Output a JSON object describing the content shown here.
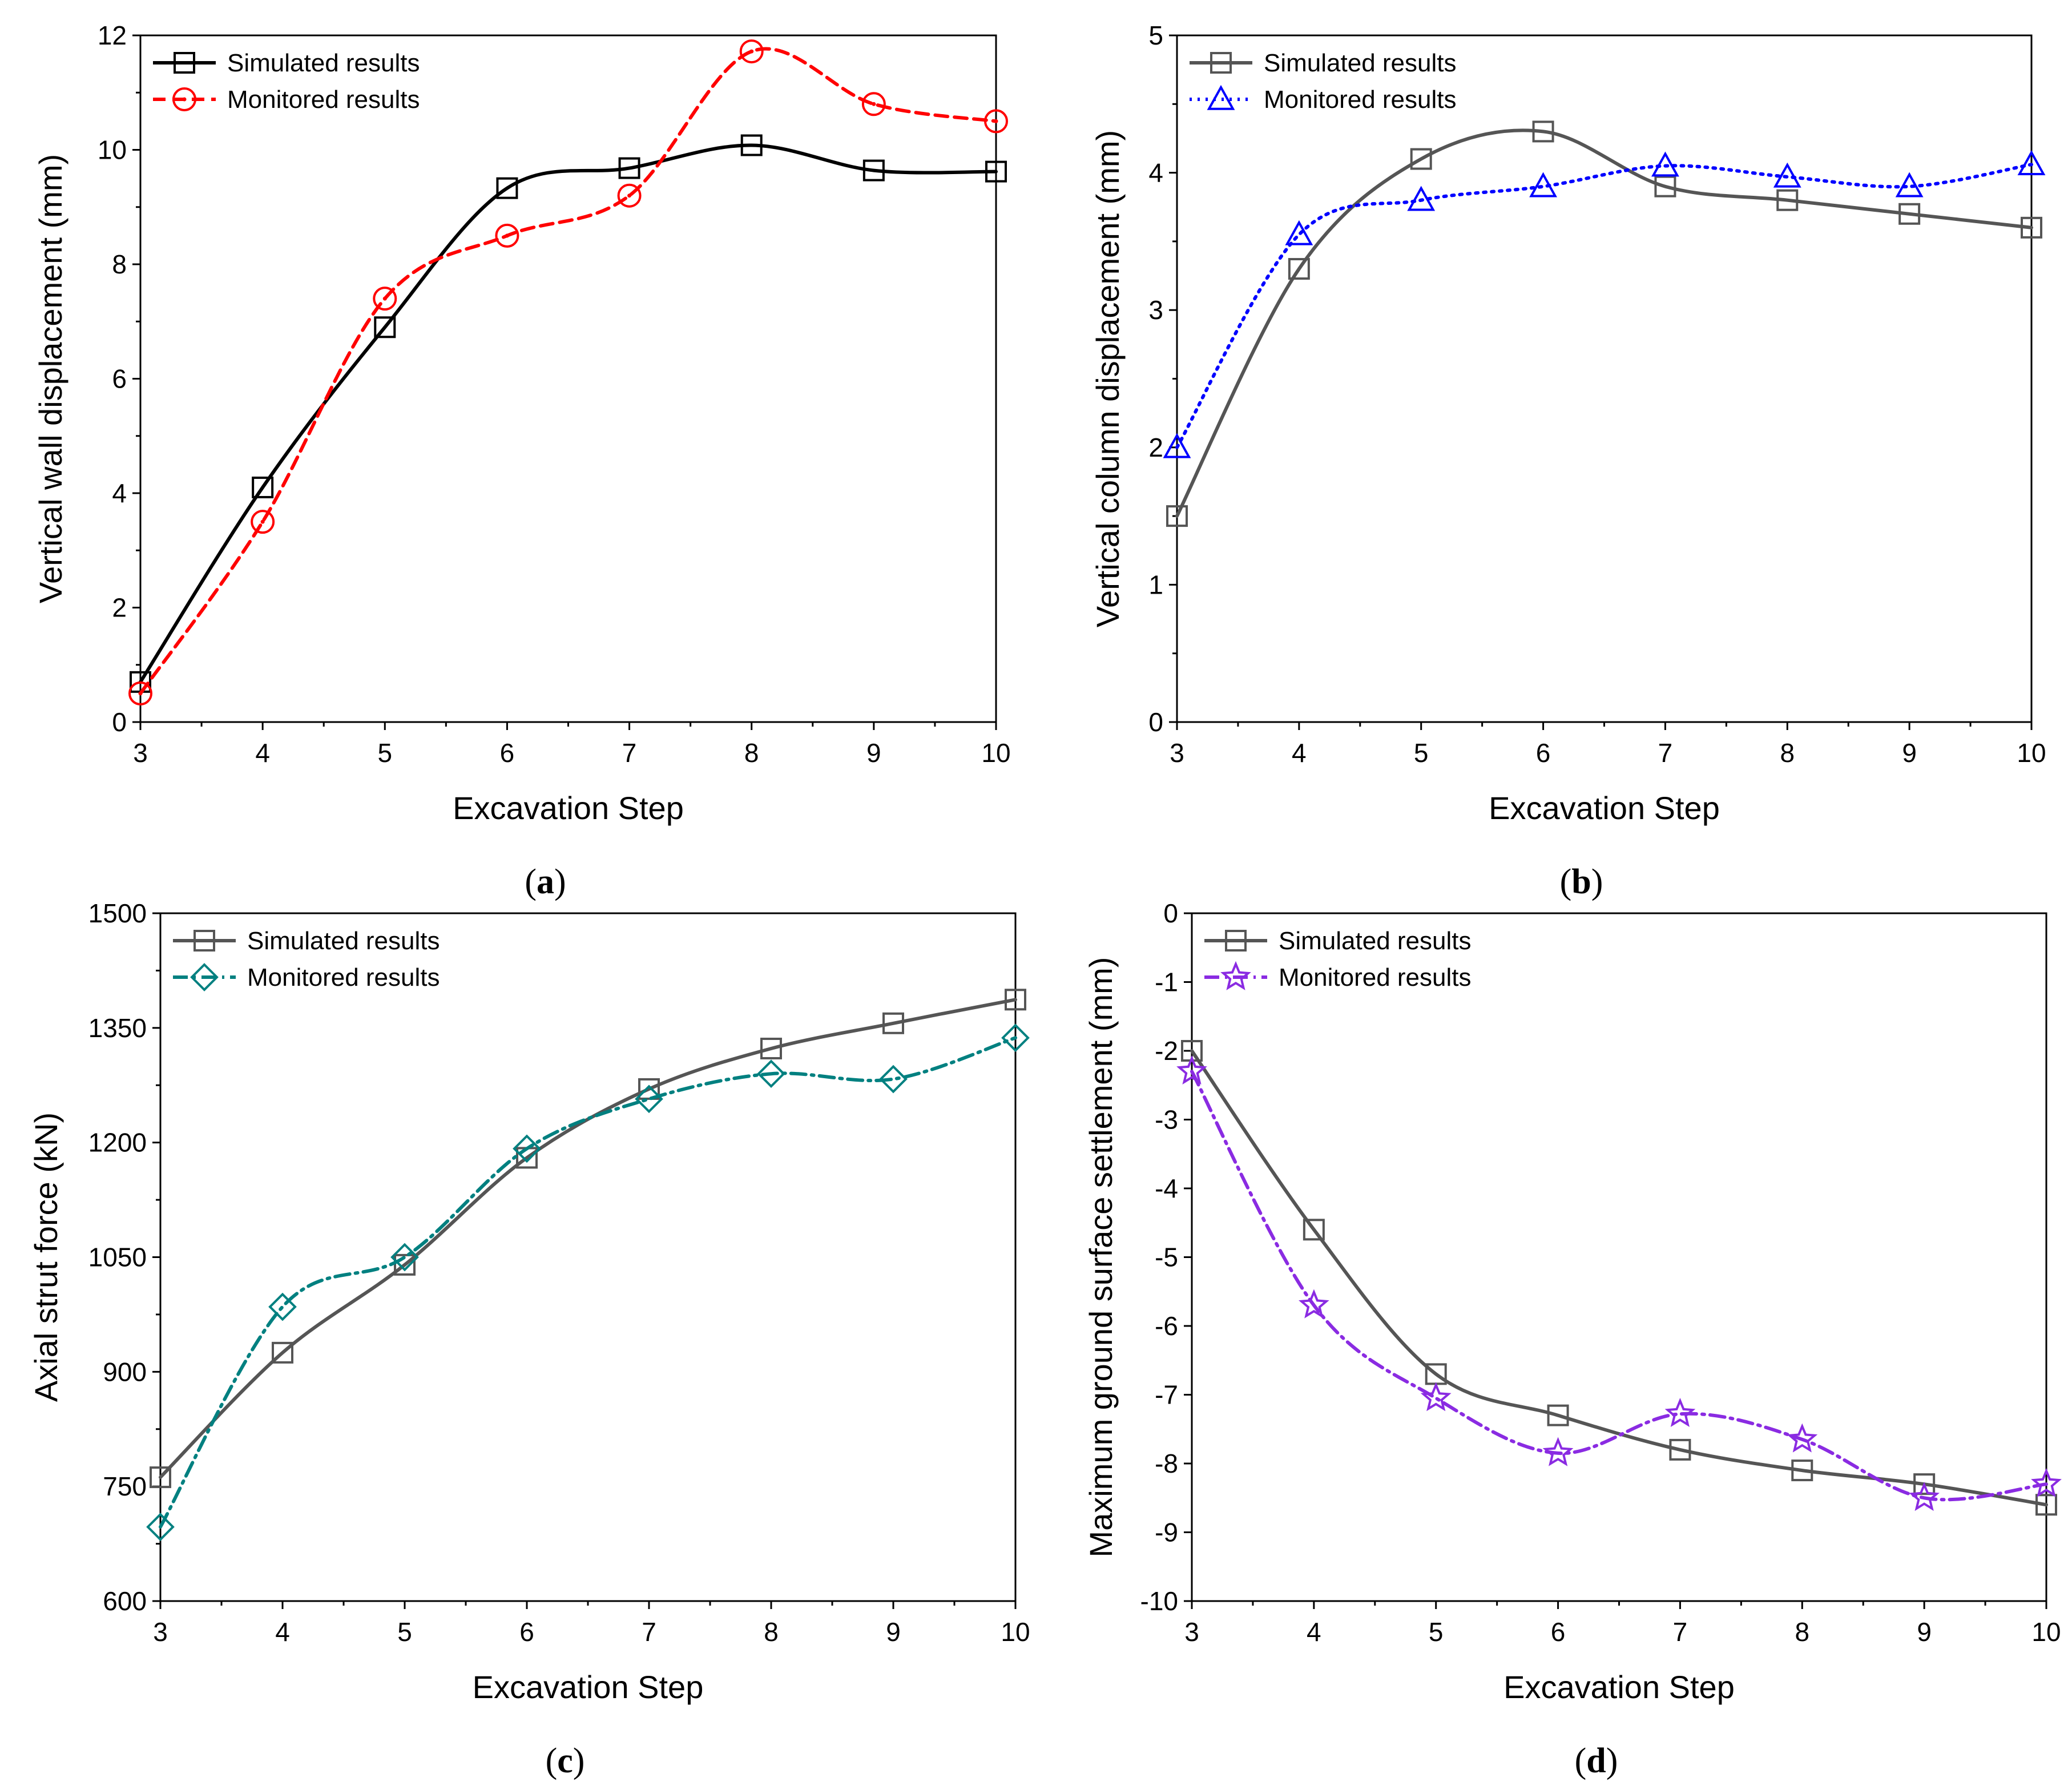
{
  "chart_data": [
    {
      "type": "line",
      "panel_label": "(a)",
      "panel_letter": "a",
      "xlabel": "Excavation Step",
      "ylabel": "Vertical wall displacement (mm)",
      "xlim": [
        3,
        10
      ],
      "ylim": [
        0,
        12
      ],
      "xticks": [
        3,
        4,
        5,
        6,
        7,
        8,
        9,
        10
      ],
      "yticks": [
        0,
        2,
        4,
        6,
        8,
        10,
        12
      ],
      "grid": false,
      "legend_position": "top-left",
      "x": [
        3,
        4,
        5,
        6,
        7,
        8,
        9,
        10
      ],
      "series": [
        {
          "name": "Simulated results",
          "values": [
            0.7,
            4.1,
            6.9,
            9.33,
            9.68,
            10.08,
            9.64,
            9.62
          ],
          "color": "#000000",
          "dash": "solid",
          "marker": "square"
        },
        {
          "name": "Monitored results",
          "values": [
            0.5,
            3.5,
            7.4,
            8.5,
            9.2,
            11.72,
            10.8,
            10.5
          ],
          "color": "#ff0000",
          "dash": "dashed",
          "marker": "circle"
        }
      ]
    },
    {
      "type": "line",
      "panel_label": "(b)",
      "panel_letter": "b",
      "xlabel": "Excavation Step",
      "ylabel": "Vertical column displacement (mm)",
      "xlim": [
        3,
        10
      ],
      "ylim": [
        0,
        5
      ],
      "xticks": [
        3,
        4,
        5,
        6,
        7,
        8,
        9,
        10
      ],
      "yticks": [
        0,
        1,
        2,
        3,
        4,
        5
      ],
      "grid": false,
      "legend_position": "top-left",
      "x": [
        3,
        4,
        5,
        6,
        7,
        8,
        9,
        10
      ],
      "series": [
        {
          "name": "Simulated results",
          "values": [
            1.5,
            3.3,
            4.1,
            4.3,
            3.9,
            3.8,
            3.7,
            3.6
          ],
          "color": "#555555",
          "dash": "solid",
          "marker": "square"
        },
        {
          "name": "Monitored results",
          "values": [
            2.0,
            3.55,
            3.8,
            3.9,
            4.05,
            3.97,
            3.9,
            4.06
          ],
          "color": "#0000ff",
          "dash": "dotted",
          "marker": "triangle"
        }
      ]
    },
    {
      "type": "line",
      "panel_label": "(c)",
      "panel_letter": "c",
      "xlabel": "Excavation Step",
      "ylabel": "Axial strut force (kN)",
      "xlim": [
        3,
        10
      ],
      "ylim": [
        600,
        1500
      ],
      "xticks": [
        3,
        4,
        5,
        6,
        7,
        8,
        9,
        10
      ],
      "yticks": [
        600,
        750,
        900,
        1050,
        1200,
        1350,
        1500
      ],
      "grid": false,
      "legend_position": "top-left",
      "x": [
        3,
        4,
        5,
        6,
        7,
        8,
        9,
        10
      ],
      "series": [
        {
          "name": "Simulated results",
          "values": [
            762,
            925,
            1040,
            1180,
            1270,
            1323,
            1356,
            1387
          ],
          "color": "#555555",
          "dash": "solid",
          "marker": "square"
        },
        {
          "name": "Monitored results",
          "values": [
            697,
            985,
            1050,
            1192,
            1257,
            1290,
            1283,
            1337
          ],
          "color": "#008080",
          "dash": "dashdot",
          "marker": "diamond"
        }
      ]
    },
    {
      "type": "line",
      "panel_label": "(d)",
      "panel_letter": "d",
      "xlabel": "Excavation Step",
      "ylabel": "Maximum ground surface settlement (mm)",
      "xlim": [
        3,
        10
      ],
      "ylim": [
        -10,
        0
      ],
      "xticks": [
        3,
        4,
        5,
        6,
        7,
        8,
        9,
        10
      ],
      "yticks": [
        -10,
        -9,
        -8,
        -7,
        -6,
        -5,
        -4,
        -3,
        -2,
        -1,
        0
      ],
      "grid": false,
      "legend_position": "top-left",
      "x": [
        3,
        4,
        5,
        6,
        7,
        8,
        9,
        10
      ],
      "series": [
        {
          "name": "Simulated results",
          "values": [
            -2.0,
            -4.6,
            -6.7,
            -7.3,
            -7.8,
            -8.1,
            -8.3,
            -8.6
          ],
          "color": "#555555",
          "dash": "solid",
          "marker": "square"
        },
        {
          "name": "Monitored results",
          "values": [
            -2.3,
            -5.7,
            -7.05,
            -7.85,
            -7.28,
            -7.65,
            -8.5,
            -8.3
          ],
          "color": "#8a2be2",
          "dash": "dashdot",
          "marker": "star"
        }
      ]
    }
  ]
}
